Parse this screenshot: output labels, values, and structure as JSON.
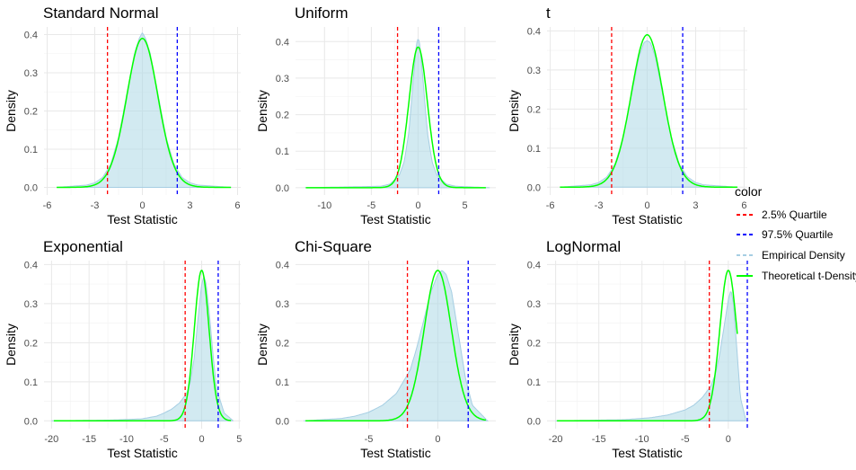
{
  "legend": {
    "title": "color",
    "placement": "right",
    "items": [
      {
        "label": "2.5% Quartile",
        "color": "#ff0000",
        "dash": true
      },
      {
        "label": "97.5% Quartile",
        "color": "#0000ff",
        "dash": true
      },
      {
        "label": "Empirical Density",
        "color": "#a6cee3",
        "dash": true
      },
      {
        "label": "Theoretical t-Density",
        "color": "#00ff00",
        "dash": false
      }
    ]
  },
  "colors": {
    "empirical_fill": "#add8e6",
    "empirical_line": "#a6cee3",
    "theoretical": "#00ff00",
    "q025": "#ff0000",
    "q975": "#0000ff"
  },
  "chart_data": [
    {
      "type": "area",
      "title": "Standard Normal",
      "xlabel": "Test Statistic",
      "ylabel": "Density",
      "grid": true,
      "xlim": [
        -6.2,
        6.2
      ],
      "ylim": [
        -0.02,
        0.42
      ],
      "xticks": [
        -6,
        -3,
        0,
        3,
        6
      ],
      "xtick_labels": [
        "-6",
        "-3",
        "0",
        "3",
        "6"
      ],
      "yticks": [
        0.0,
        0.1,
        0.2,
        0.3,
        0.4
      ],
      "ytick_labels": [
        "0.0",
        "0.1",
        "0.2",
        "0.3",
        "0.4"
      ],
      "q025": -2.2,
      "q975": 2.2,
      "theoretical_peak": 0.39,
      "empirical": {
        "x": [
          -5.4,
          -3.5,
          -3.0,
          -2.5,
          -2.0,
          -1.5,
          -1.0,
          -0.5,
          -0.2,
          0.0,
          0.2,
          0.5,
          1.0,
          1.5,
          2.0,
          2.5,
          3.0,
          3.5,
          5.6
        ],
        "y": [
          0.0,
          0.006,
          0.012,
          0.026,
          0.06,
          0.13,
          0.24,
          0.35,
          0.39,
          0.405,
          0.39,
          0.35,
          0.24,
          0.13,
          0.06,
          0.026,
          0.012,
          0.006,
          0.0
        ]
      }
    },
    {
      "type": "area",
      "title": "Uniform",
      "xlabel": "Test Statistic",
      "ylabel": "Density",
      "grid": true,
      "xlim": [
        -13.1,
        8.3
      ],
      "ylim": [
        -0.02,
        0.44
      ],
      "xticks": [
        -10,
        -5,
        0,
        5
      ],
      "xtick_labels": [
        "-10",
        "-5",
        "0",
        "5"
      ],
      "yticks": [
        0.0,
        0.1,
        0.2,
        0.3,
        0.4
      ],
      "ytick_labels": [
        "0.0",
        "0.1",
        "0.2",
        "0.3",
        "0.4"
      ],
      "q025": -2.2,
      "q975": 2.2,
      "theoretical_peak": 0.385,
      "empirical": {
        "x": [
          -12,
          -4,
          -3,
          -2,
          -1.5,
          -1.0,
          -0.5,
          -0.2,
          0.0,
          0.2,
          0.5,
          1.0,
          1.5,
          2.0,
          3.0,
          4.0,
          7.6
        ],
        "y": [
          0.0,
          0.004,
          0.01,
          0.035,
          0.07,
          0.15,
          0.3,
          0.39,
          0.41,
          0.39,
          0.3,
          0.15,
          0.07,
          0.035,
          0.01,
          0.004,
          0.0
        ]
      }
    },
    {
      "type": "area",
      "title": "t",
      "xlabel": "Test Statistic",
      "ylabel": "Density",
      "grid": true,
      "xlim": [
        -6.2,
        6.2
      ],
      "ylim": [
        -0.02,
        0.41
      ],
      "xticks": [
        -6,
        -3,
        0,
        3,
        6
      ],
      "xtick_labels": [
        "-6",
        "-3",
        "0",
        "3",
        "6"
      ],
      "yticks": [
        0.0,
        0.1,
        0.2,
        0.3,
        0.4
      ],
      "ytick_labels": [
        "0.0",
        "0.1",
        "0.2",
        "0.3",
        "0.4"
      ],
      "q025": -2.2,
      "q975": 2.2,
      "theoretical_peak": 0.39,
      "empirical": {
        "x": [
          -5.4,
          -3.5,
          -3.0,
          -2.5,
          -2.0,
          -1.5,
          -1.0,
          -0.5,
          -0.2,
          0.0,
          0.2,
          0.5,
          1.0,
          1.5,
          2.0,
          2.5,
          3.0,
          3.5,
          5.6
        ],
        "y": [
          0.0,
          0.006,
          0.012,
          0.026,
          0.058,
          0.125,
          0.23,
          0.335,
          0.37,
          0.375,
          0.37,
          0.335,
          0.23,
          0.125,
          0.058,
          0.026,
          0.012,
          0.006,
          0.0
        ]
      }
    },
    {
      "type": "area",
      "title": "Exponential",
      "xlabel": "Test Statistic",
      "ylabel": "Density",
      "grid": true,
      "xlim": [
        -21.0,
        5.2
      ],
      "ylim": [
        -0.02,
        0.41
      ],
      "xticks": [
        -20,
        -15,
        -10,
        -5,
        0,
        5
      ],
      "xtick_labels": [
        "-20",
        "-15",
        "-10",
        "-5",
        "0",
        "5"
      ],
      "yticks": [
        0.0,
        0.1,
        0.2,
        0.3,
        0.4
      ],
      "ytick_labels": [
        "0.0",
        "0.1",
        "0.2",
        "0.3",
        "0.4"
      ],
      "q025": -2.2,
      "q975": 2.2,
      "theoretical_peak": 0.385,
      "empirical": {
        "x": [
          -20,
          -12,
          -8,
          -6,
          -5,
          -4,
          -3,
          -2,
          -1.5,
          -1.0,
          -0.5,
          0.0,
          0.3,
          0.6,
          1.0,
          1.5,
          2.0,
          3.0,
          4.2
        ],
        "y": [
          0.0,
          0.002,
          0.005,
          0.012,
          0.02,
          0.03,
          0.045,
          0.07,
          0.1,
          0.16,
          0.26,
          0.35,
          0.37,
          0.35,
          0.28,
          0.17,
          0.08,
          0.02,
          0.0
        ]
      }
    },
    {
      "type": "area",
      "title": "Chi-Square",
      "xlabel": "Test Statistic",
      "ylabel": "Density",
      "grid": true,
      "xlim": [
        -10.3,
        4.2
      ],
      "ylim": [
        -0.02,
        0.41
      ],
      "xticks": [
        -5,
        0
      ],
      "xtick_labels": [
        "-5",
        "0"
      ],
      "yticks": [
        0.0,
        0.1,
        0.2,
        0.3,
        0.4
      ],
      "ytick_labels": [
        "0.0",
        "0.1",
        "0.2",
        "0.3",
        "0.4"
      ],
      "q025": -2.2,
      "q975": 2.2,
      "theoretical_peak": 0.385,
      "empirical": {
        "x": [
          -9.7,
          -7,
          -6,
          -5,
          -4,
          -3,
          -2,
          -1.5,
          -1.0,
          -0.5,
          0.0,
          0.3,
          0.6,
          1.0,
          1.5,
          2.0,
          2.5,
          3.6
        ],
        "y": [
          0.0,
          0.006,
          0.012,
          0.022,
          0.04,
          0.07,
          0.13,
          0.19,
          0.26,
          0.33,
          0.375,
          0.385,
          0.375,
          0.33,
          0.22,
          0.11,
          0.04,
          0.0
        ]
      }
    },
    {
      "type": "area",
      "title": "LogNormal",
      "xlabel": "Test Statistic",
      "ylabel": "Density",
      "grid": true,
      "xlim": [
        -21.0,
        2.2
      ],
      "ylim": [
        -0.02,
        0.41
      ],
      "xticks": [
        -20,
        -15,
        -10,
        -5,
        0
      ],
      "xtick_labels": [
        "-20",
        "-15",
        "-10",
        "-5",
        "0"
      ],
      "yticks": [
        0.0,
        0.1,
        0.2,
        0.3,
        0.4
      ],
      "ytick_labels": [
        "0.0",
        "0.1",
        "0.2",
        "0.3",
        "0.4"
      ],
      "q025": -2.2,
      "q975": 2.2,
      "theoretical_peak": 0.385,
      "empirical": {
        "x": [
          -20,
          -12,
          -9,
          -7,
          -5,
          -4,
          -3,
          -2,
          -1.5,
          -1.0,
          -0.5,
          0.0,
          0.3,
          0.6,
          1.0,
          1.4,
          2.0
        ],
        "y": [
          0.0,
          0.003,
          0.008,
          0.015,
          0.028,
          0.04,
          0.06,
          0.09,
          0.12,
          0.17,
          0.24,
          0.31,
          0.335,
          0.3,
          0.18,
          0.06,
          0.005
        ]
      }
    }
  ]
}
